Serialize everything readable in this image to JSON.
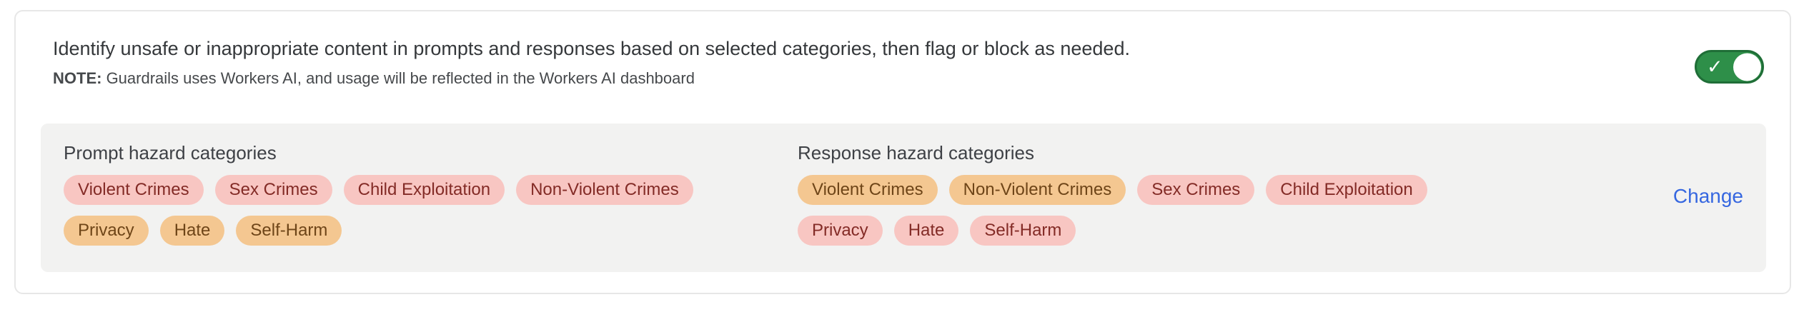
{
  "colors": {
    "pill_pink_bg": "#f8c6c2",
    "pill_pink_text": "#832b26",
    "pill_orange_bg": "#f4c791",
    "pill_orange_text": "#6e4518",
    "panel_bg": "#f2f2f1",
    "toggle_green": "#2e8f49",
    "toggle_green_border": "#1f6e37",
    "link_blue": "#3667e0"
  },
  "header": {
    "description": "Identify unsafe or inappropriate content in prompts and responses based on selected categories, then flag or block as needed.",
    "note_label": "NOTE:",
    "note_text": " Guardrails uses Workers AI, and usage will be reflected in the Workers AI dashboard",
    "toggle": {
      "state": "on",
      "icon": "checkmark",
      "check_glyph": "✓"
    }
  },
  "panel": {
    "prompt": {
      "title": "Prompt hazard categories",
      "pills": [
        {
          "label": "Violent Crimes",
          "color": "pink"
        },
        {
          "label": "Sex Crimes",
          "color": "pink"
        },
        {
          "label": "Child Exploitation",
          "color": "pink"
        },
        {
          "label": "Non-Violent Crimes",
          "color": "pink"
        },
        {
          "label": "Privacy",
          "color": "orange"
        },
        {
          "label": "Hate",
          "color": "orange"
        },
        {
          "label": "Self-Harm",
          "color": "orange"
        }
      ]
    },
    "response": {
      "title": "Response hazard categories",
      "pills": [
        {
          "label": "Violent Crimes",
          "color": "orange"
        },
        {
          "label": "Non-Violent Crimes",
          "color": "orange"
        },
        {
          "label": "Sex Crimes",
          "color": "pink"
        },
        {
          "label": "Child Exploitation",
          "color": "pink"
        },
        {
          "label": "Privacy",
          "color": "pink"
        },
        {
          "label": "Hate",
          "color": "pink"
        },
        {
          "label": "Self-Harm",
          "color": "pink"
        }
      ]
    },
    "change_label": "Change"
  }
}
